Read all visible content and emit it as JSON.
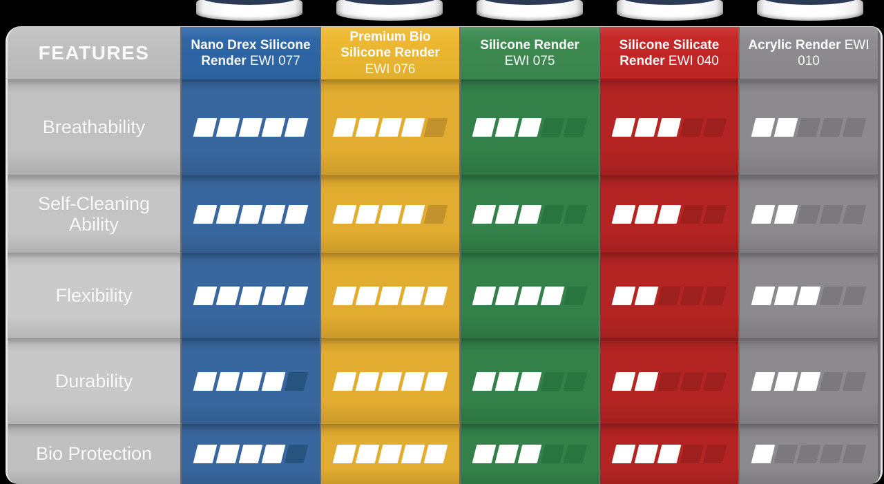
{
  "graphic": {
    "background_color": "#000000",
    "features_header": "FEATURES",
    "filled_block_color": "#ffffff",
    "bucket_lid_color": "#2b3a55",
    "columns": [
      {
        "name": "Nano Drex Silicone Render",
        "code": "EWI 077",
        "header_color": "#2e67a7",
        "body_color": "#38679f",
        "empty_block_color": "#26547f"
      },
      {
        "name": "Premium Bio Silicone Render",
        "code": "EWI 076",
        "header_color": "#eeb930",
        "body_color": "#e1ac2f",
        "empty_block_color": "#c2932c"
      },
      {
        "name": "Silicone Render",
        "code": "EWI 075",
        "header_color": "#3d8b51",
        "body_color": "#338149",
        "empty_block_color": "#2a7440"
      },
      {
        "name": "Silicone Silicate Render",
        "code": "EWI 040",
        "header_color": "#c52726",
        "body_color": "#b42423",
        "empty_block_color": "#9d1f1e"
      },
      {
        "name": "Acrylic Render",
        "code": "EWI 010",
        "header_color": "#908d92",
        "body_color": "#8d8a8f",
        "empty_block_color": "#7c797e"
      }
    ],
    "rows": [
      {
        "label": "Breathability",
        "ratings": [
          5,
          4,
          3,
          3,
          2
        ]
      },
      {
        "label": "Self-Cleaning Ability",
        "ratings": [
          5,
          4,
          3,
          3,
          2
        ]
      },
      {
        "label": "Flexibility",
        "ratings": [
          5,
          5,
          4,
          2,
          3
        ]
      },
      {
        "label": "Durability",
        "ratings": [
          4,
          5,
          3,
          2,
          3
        ]
      },
      {
        "label": "Bio Protection",
        "ratings": [
          4,
          5,
          3,
          3,
          1
        ]
      }
    ],
    "max_rating": 5
  },
  "chart_data": {
    "type": "table",
    "title": "Render features comparison",
    "categories": [
      "Breathability",
      "Self-Cleaning Ability",
      "Flexibility",
      "Durability",
      "Bio Protection"
    ],
    "series": [
      {
        "name": "Nano Drex Silicone Render EWI 077",
        "values": [
          5,
          5,
          5,
          4,
          4
        ]
      },
      {
        "name": "Premium Bio Silicone Render EWI 076",
        "values": [
          4,
          4,
          5,
          5,
          5
        ]
      },
      {
        "name": "Silicone Render EWI 075",
        "values": [
          3,
          3,
          4,
          3,
          3
        ]
      },
      {
        "name": "Silicone Silicate Render EWI 040",
        "values": [
          3,
          3,
          2,
          2,
          3
        ]
      },
      {
        "name": "Acrylic Render EWI 010",
        "values": [
          2,
          2,
          3,
          3,
          1
        ]
      }
    ],
    "value_range": [
      0,
      5
    ],
    "legend_position": "none",
    "notes": "Each cell shows N of 5 filled parallelogram blocks in the product column color; unfilled blocks are a darker shade of the column color."
  }
}
